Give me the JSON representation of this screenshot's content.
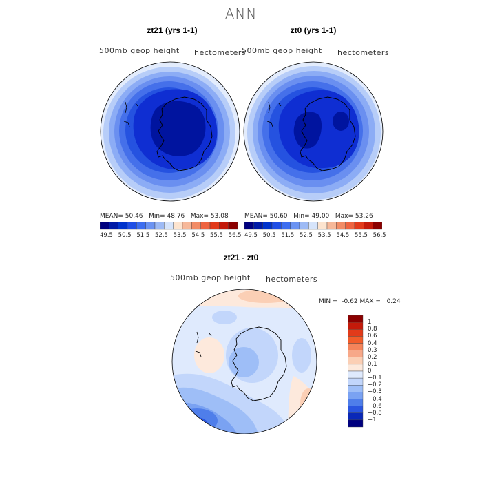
{
  "main_title": "ANN",
  "panels": [
    {
      "title": "zt21 (yrs 1-1)",
      "variable_label": "500mb geop height",
      "units_label": "hectometers",
      "stats": {
        "mean_label": "MEAN=",
        "mean": "50.46",
        "min_label": "Min=",
        "min": "48.76",
        "max_label": "Max=",
        "max": "53.08"
      }
    },
    {
      "title": "zt0 (yrs 1-1)",
      "variable_label": "500mb geop height",
      "units_label": "hectometers",
      "stats": {
        "mean_label": "MEAN=",
        "mean": "50.60",
        "min_label": "Min=",
        "min": "49.00",
        "max_label": "Max=",
        "max": "53.26"
      }
    }
  ],
  "absolute_colorbar": {
    "tick_labels": [
      "49.5",
      "50.5",
      "51.5",
      "52.5",
      "53.5",
      "54.5",
      "55.5",
      "56.5"
    ],
    "colors": [
      "#00007f",
      "#001aa6",
      "#0033cc",
      "#1f4fe6",
      "#3d6ef0",
      "#6b93f2",
      "#9dbaf5",
      "#d6e4fb",
      "#fde4cf",
      "#f7b899",
      "#f28c66",
      "#ee6440",
      "#e23a1a",
      "#c41a0a",
      "#8b0000"
    ]
  },
  "difference_panel": {
    "title": "zt21 - zt0",
    "variable_label": "500mb geop height",
    "units_label": "hectometers",
    "min_label": "MIN =",
    "min": "-0.62",
    "max_label": "MAX =",
    "max": "0.24",
    "colorbar": {
      "tick_labels": [
        "1",
        "0.8",
        "0.6",
        "0.4",
        "0.3",
        "0.2",
        "0.1",
        "0",
        "−0.1",
        "−0.2",
        "−0.3",
        "−0.4",
        "−0.6",
        "−0.8",
        "−1"
      ],
      "colors": [
        "#8b0000",
        "#c41a0a",
        "#e23a1a",
        "#f25c2a",
        "#f5845a",
        "#f7a889",
        "#fbcfb5",
        "#fde9dc",
        "#dfeafd",
        "#c2d6fb",
        "#9ebef7",
        "#7aa2f2",
        "#4f7eea",
        "#2a55e0",
        "#0a28b8",
        "#00007f"
      ]
    }
  }
}
